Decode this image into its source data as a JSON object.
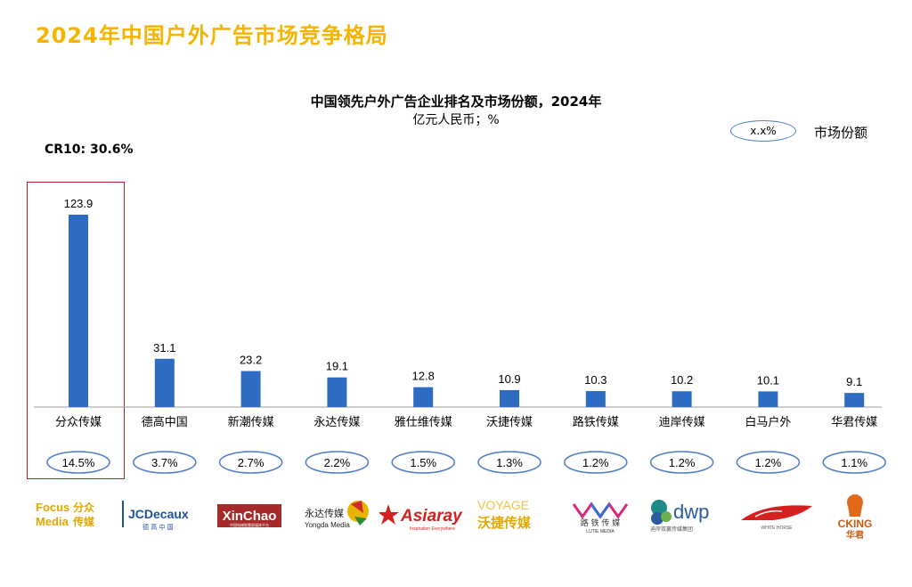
{
  "page": {
    "title": "2024年中国户外广告市场竞争格局",
    "cr10": "CR10: 30.6%"
  },
  "legend": {
    "oval_text": "x.x%",
    "label": "市场份额"
  },
  "colors": {
    "bar": "#2e6cc4",
    "oval_border": "#4d7dc4",
    "title": "#f5b400",
    "highlight": "#b22222"
  },
  "chart_data": {
    "type": "bar",
    "title": "中国领先户外广告企业排名及市场份额，2024年",
    "subtitle": "亿元人民币；%",
    "categories": [
      "分众传媒",
      "德高中国",
      "新潮传媒",
      "永达传媒",
      "雅仕维传媒",
      "沃捷传媒",
      "路铁传媒",
      "迪岸传媒",
      "白马户外",
      "华君传媒"
    ],
    "values": [
      123.9,
      31.1,
      23.2,
      19.1,
      12.8,
      10.9,
      10.3,
      10.2,
      10.1,
      9.1
    ],
    "value_labels": [
      "123.9",
      "31.1",
      "23.2",
      "19.1",
      "12.8",
      "10.9",
      "10.3",
      "10.2",
      "10.1",
      "9.1"
    ],
    "shares": [
      "14.5%",
      "3.7%",
      "2.7%",
      "2.2%",
      "1.5%",
      "1.3%",
      "1.2%",
      "1.2%",
      "1.2%",
      "1.1%"
    ],
    "highlighted_index": 0,
    "ylim": [
      0,
      123.9
    ]
  },
  "logos": [
    {
      "name": "focus-media",
      "line1": "Focus",
      "line2": "Media",
      "cn1": "分众",
      "cn2": "传媒"
    },
    {
      "name": "jcdecaux",
      "text": "JCDecaux",
      "sub": "德 高 中 国"
    },
    {
      "name": "xinchao",
      "text": "XinChao",
      "sub": "中国电梯智慧屏媒体平台"
    },
    {
      "name": "yongda",
      "cn": "永达传媒",
      "en": "Yongda Media"
    },
    {
      "name": "asiaray",
      "text": "Asiaray",
      "sub": "Inspiration Everywhere"
    },
    {
      "name": "voyage",
      "text": "VOYAGE",
      "cn": "沃捷传媒"
    },
    {
      "name": "lutie",
      "cn": "路 铁 传 媒",
      "en": "LUTIE MEDIA"
    },
    {
      "name": "dwp",
      "text": "dwp",
      "sub": "迪岸双赢传媒集团"
    },
    {
      "name": "white-horse",
      "text": "WHITE HORSE"
    },
    {
      "name": "cking",
      "text": "CKING",
      "cn": "华君"
    }
  ]
}
